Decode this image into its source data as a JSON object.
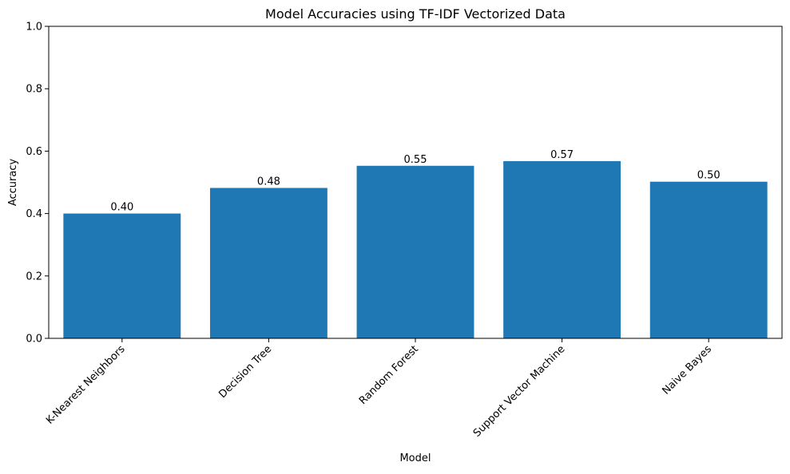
{
  "chart_data": {
    "type": "bar",
    "title": "Model Accuracies using TF-IDF Vectorized Data",
    "xlabel": "Model",
    "ylabel": "Accuracy",
    "ylim": [
      0,
      1.0
    ],
    "yticks": [
      0.0,
      0.2,
      0.4,
      0.6,
      0.8,
      1.0
    ],
    "ytick_labels": [
      "0.0",
      "0.2",
      "0.4",
      "0.6",
      "0.8",
      "1.0"
    ],
    "categories": [
      "K-Nearest Neighbors",
      "Decision Tree",
      "Random Forest",
      "Support Vector Machine",
      "Naive Bayes"
    ],
    "values": [
      0.4,
      0.482,
      0.553,
      0.568,
      0.502
    ],
    "value_labels": [
      "0.40",
      "0.48",
      "0.55",
      "0.57",
      "0.50"
    ],
    "bar_color": "#1f77b4",
    "grid": false,
    "legend": false
  }
}
